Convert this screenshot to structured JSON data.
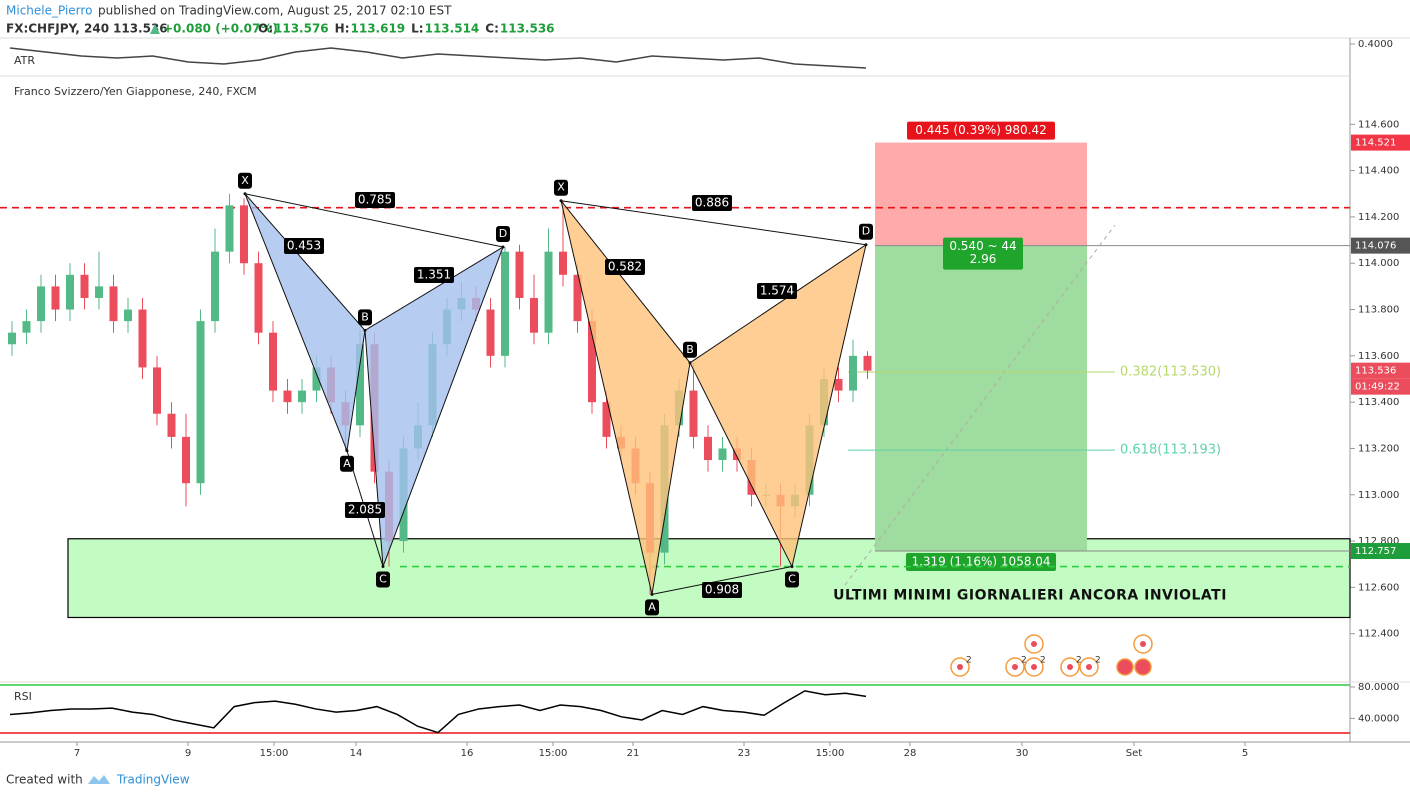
{
  "header": {
    "author": "Michele_Pierro",
    "published": "published on TradingView.com, August 25, 2017 02:10 EST",
    "symbol": "FX:CHFJPY, 240",
    "last": "113.536",
    "change": "+0.080 (+0.07%)",
    "ohlc": [
      {
        "label": "O:",
        "value": "113.576"
      },
      {
        "label": "H:",
        "value": "113.619"
      },
      {
        "label": "L:",
        "value": "113.514"
      },
      {
        "label": "C:",
        "value": "113.536"
      }
    ]
  },
  "chart_data": {
    "type": "candlestick",
    "title": "Franco Svizzero/Yen Giapponese, 240, FXCM",
    "open": [
      113.65,
      113.7,
      113.75,
      113.9,
      113.8,
      113.95,
      113.85,
      113.9,
      113.75,
      113.8,
      113.55,
      113.35,
      113.25,
      113.05,
      113.75,
      114.05,
      114.25,
      114.0,
      113.7,
      113.45,
      113.4,
      113.45,
      113.55,
      113.4,
      113.3,
      113.65,
      113.1,
      112.8,
      113.2,
      113.3,
      113.65,
      113.8,
      113.85,
      113.8,
      113.6,
      114.05,
      113.85,
      113.7,
      114.05,
      113.95,
      113.75,
      113.4,
      113.25,
      113.2,
      113.05,
      112.75,
      113.3,
      113.45,
      113.25,
      113.15,
      113.2,
      113.15,
      113.0,
      113.0,
      112.95,
      113.0,
      113.3,
      113.5,
      113.45,
      113.6
    ],
    "high": [
      113.75,
      113.8,
      113.95,
      113.95,
      114.0,
      114.0,
      114.05,
      113.95,
      113.85,
      113.85,
      113.6,
      113.4,
      113.35,
      113.8,
      114.15,
      114.3,
      114.28,
      114.05,
      113.75,
      113.5,
      113.5,
      113.6,
      113.6,
      113.45,
      113.71,
      113.7,
      113.15,
      113.25,
      113.4,
      113.7,
      113.85,
      113.92,
      113.9,
      113.85,
      114.07,
      114.08,
      113.95,
      114.15,
      114.27,
      114.0,
      113.8,
      113.45,
      113.3,
      113.25,
      113.1,
      113.35,
      113.5,
      113.57,
      113.3,
      113.25,
      113.25,
      113.2,
      113.05,
      113.05,
      113.05,
      113.35,
      113.55,
      113.55,
      113.67,
      113.62
    ],
    "low": [
      113.6,
      113.65,
      113.7,
      113.75,
      113.75,
      113.8,
      113.8,
      113.7,
      113.7,
      113.5,
      113.3,
      113.2,
      112.95,
      113.0,
      113.7,
      114.0,
      113.95,
      113.65,
      113.4,
      113.35,
      113.35,
      113.4,
      113.35,
      113.19,
      113.25,
      113.05,
      112.69,
      112.75,
      113.15,
      113.25,
      113.6,
      113.75,
      113.75,
      113.55,
      113.55,
      113.8,
      113.65,
      113.65,
      113.9,
      113.7,
      113.35,
      113.2,
      113.15,
      113.0,
      112.57,
      112.7,
      113.25,
      113.2,
      113.1,
      113.1,
      113.1,
      112.95,
      112.95,
      112.69,
      112.9,
      112.95,
      113.25,
      113.4,
      113.4,
      113.5
    ],
    "close": [
      113.7,
      113.75,
      113.9,
      113.8,
      113.95,
      113.85,
      113.9,
      113.75,
      113.8,
      113.55,
      113.35,
      113.25,
      113.05,
      113.75,
      114.05,
      114.25,
      114.0,
      113.7,
      113.45,
      113.4,
      113.45,
      113.55,
      113.4,
      113.3,
      113.65,
      113.1,
      112.8,
      113.2,
      113.3,
      113.65,
      113.8,
      113.85,
      113.8,
      113.6,
      114.05,
      113.85,
      113.7,
      114.05,
      113.95,
      113.75,
      113.4,
      113.25,
      113.2,
      113.05,
      112.75,
      113.3,
      113.45,
      113.25,
      113.15,
      113.2,
      113.15,
      113.0,
      113.0,
      112.95,
      113.0,
      113.3,
      113.5,
      113.45,
      113.6,
      113.536
    ],
    "up_color": "#53b987",
    "down_color": "#eb4d5c",
    "ylim": [
      112.2,
      114.8
    ],
    "yticks": [
      {
        "value": 112.4,
        "label": "112.400"
      },
      {
        "value": 112.6,
        "label": "112.600"
      },
      {
        "value": 112.8,
        "label": "112.800"
      },
      {
        "value": 113.0,
        "label": "113.000"
      },
      {
        "value": 113.2,
        "label": "113.200"
      },
      {
        "value": 113.4,
        "label": "113.400"
      },
      {
        "value": 113.6,
        "label": "113.600"
      },
      {
        "value": 113.8,
        "label": "113.800"
      },
      {
        "value": 114.0,
        "label": "114.000"
      },
      {
        "value": 114.2,
        "label": "114.200"
      },
      {
        "value": 114.4,
        "label": "114.400"
      },
      {
        "value": 114.6,
        "label": "114.600"
      }
    ],
    "xticks": [
      "7",
      "9",
      "15:00",
      "14",
      "16",
      "15:00",
      "21",
      "23",
      "15:00",
      "28",
      "30",
      "Set",
      "5"
    ],
    "price_labels": [
      {
        "value": 114.521,
        "label": "114.521",
        "color": "#f23645"
      },
      {
        "value": 114.076,
        "label": "114.076",
        "color": "#555555"
      },
      {
        "value": 113.536,
        "label": "113.536",
        "color": "#eb4d5c"
      },
      {
        "value": 112.757,
        "label": "112.757",
        "color": "#1e9e3a"
      }
    ],
    "countdown": "01:49:22",
    "patterns": [
      {
        "color": "#a4bfee",
        "points": [
          {
            "label": "X",
            "price": 114.3
          },
          {
            "label": "A",
            "price": 113.19
          },
          {
            "label": "B",
            "price": 113.71
          },
          {
            "label": "C",
            "price": 112.69
          },
          {
            "label": "D",
            "price": 114.07
          }
        ],
        "ratios": [
          "0.785",
          "0.453",
          "1.351",
          "2.085"
        ]
      },
      {
        "color": "#ffc27a",
        "points": [
          {
            "label": "X",
            "price": 114.27
          },
          {
            "label": "A",
            "price": 112.57
          },
          {
            "label": "B",
            "price": 113.57
          },
          {
            "label": "C",
            "price": 112.69
          },
          {
            "label": "D",
            "price": 114.08
          }
        ],
        "ratios": [
          "0.886",
          "0.582",
          "1.574",
          "0.908"
        ]
      }
    ],
    "position": {
      "stop": 114.521,
      "entry": 114.076,
      "target": 112.757,
      "stop_label": "0.445 (0.39%) 980.42",
      "ratio_label": "0.540 ~ 44",
      "rr_label": "2.96",
      "target_label": "1.319 (1.16%) 1058.04"
    },
    "fib": [
      {
        "value": 113.53,
        "label": "0.382(113.530)",
        "color": "#b5d96a"
      },
      {
        "value": 113.193,
        "label": "0.618(113.193)",
        "color": "#5fd3a8"
      }
    ],
    "resistance": 114.24,
    "support": 112.69,
    "zone": {
      "top": 112.81,
      "bottom": 112.47,
      "label": "ULTIMI MINIMI GIORNALIERI ANCORA INVIOLATI"
    },
    "events": [
      "2",
      "2",
      "2",
      "2",
      "2"
    ],
    "atr": {
      "name": "ATR",
      "values": [
        0.38,
        0.36,
        0.34,
        0.33,
        0.34,
        0.31,
        0.3,
        0.32,
        0.36,
        0.38,
        0.36,
        0.33,
        0.35,
        0.34,
        0.33,
        0.32,
        0.33,
        0.31,
        0.34,
        0.33,
        0.32,
        0.33,
        0.3,
        0.29,
        0.28
      ],
      "ylim": [
        0.25,
        0.42
      ],
      "yticks": [
        {
          "value": 0.4,
          "label": "0.4000"
        }
      ]
    },
    "rsi": {
      "name": "RSI",
      "values": [
        45,
        47,
        50,
        52,
        52,
        53,
        48,
        45,
        38,
        33,
        28,
        55,
        60,
        62,
        58,
        52,
        48,
        50,
        55,
        45,
        30,
        22,
        45,
        52,
        55,
        57,
        50,
        57,
        55,
        50,
        42,
        38,
        50,
        45,
        55,
        50,
        48,
        44,
        60,
        75,
        70,
        72,
        68
      ],
      "ylim": [
        12.5,
        85
      ],
      "yticks": [
        {
          "value": 40,
          "label": "40.0000"
        },
        {
          "value": 80,
          "label": "80.0000"
        }
      ]
    }
  },
  "footer": {
    "created": "Created with",
    "brand": "TradingView"
  }
}
